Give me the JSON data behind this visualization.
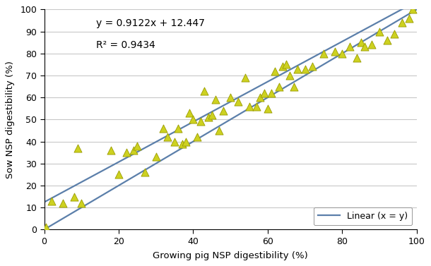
{
  "scatter_x": [
    0.5,
    2,
    5,
    8,
    9,
    10,
    18,
    20,
    22,
    24,
    25,
    27,
    30,
    32,
    33,
    35,
    36,
    37,
    38,
    39,
    40,
    41,
    42,
    43,
    44,
    45,
    46,
    47,
    48,
    50,
    52,
    54,
    55,
    57,
    58,
    59,
    60,
    61,
    62,
    63,
    64,
    65,
    66,
    67,
    68,
    70,
    72,
    75,
    78,
    80,
    82,
    84,
    85,
    86,
    88,
    90,
    92,
    94,
    96,
    98,
    99
  ],
  "scatter_y": [
    1,
    13,
    12,
    15,
    37,
    12,
    36,
    25,
    35,
    36,
    38,
    26,
    33,
    46,
    42,
    40,
    46,
    39,
    40,
    53,
    50,
    42,
    49,
    63,
    51,
    52,
    59,
    45,
    54,
    60,
    58,
    69,
    56,
    56,
    60,
    62,
    55,
    62,
    72,
    65,
    74,
    75,
    70,
    65,
    73,
    73,
    74,
    80,
    81,
    80,
    83,
    78,
    85,
    83,
    84,
    90,
    86,
    89,
    94,
    96,
    100
  ],
  "reg_slope": 0.9122,
  "reg_intercept": 12.447,
  "r2": 0.9434,
  "identity_slope": 1.0,
  "identity_intercept": 0.0,
  "xlim": [
    0,
    100
  ],
  "ylim": [
    0,
    100
  ],
  "xticks": [
    0,
    20,
    40,
    60,
    80,
    100
  ],
  "yticks": [
    0,
    10,
    20,
    30,
    40,
    50,
    60,
    70,
    80,
    90,
    100
  ],
  "xlabel": "Growing pig NSP digestibility (%)",
  "ylabel": "Sow NSP digestibility (%)",
  "marker_color": "#cdd120",
  "marker_edge_color": "#999b00",
  "line_color": "#5b7faa",
  "background_color": "#ffffff",
  "grid_color": "#c8c8c8",
  "annotation_eq": "y = 0.9122x + 12.447",
  "annotation_r2": "R² = 0.9434",
  "legend_label": "Linear (x = y)",
  "marker_size": 8,
  "line_width": 1.6
}
